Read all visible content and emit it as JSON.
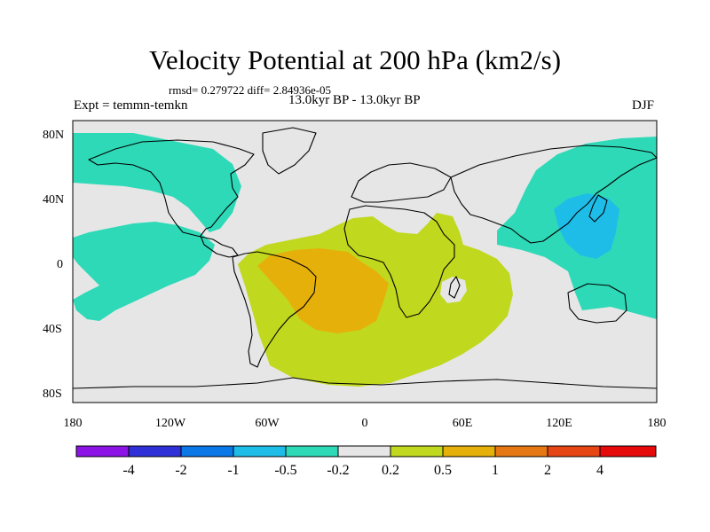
{
  "title": "Velocity Potential at 200 hPa (km2/s)",
  "stats": "rmsd= 0.279722 diff= 2.84936e-05",
  "period": "13.0kyr BP - 13.0kyr BP",
  "experiment": "Expt = temmn-temkn",
  "season": "DJF",
  "lat_ticks": [
    "80N",
    "40N",
    "0",
    "40S",
    "80S"
  ],
  "lon_ticks": [
    "180",
    "120W",
    "60W",
    "0",
    "60E",
    "120E",
    "180"
  ],
  "colorbar": {
    "colors": [
      "#8c14e6",
      "#3030d8",
      "#0a78e6",
      "#1ebde8",
      "#2ed9b8",
      "#e6e6e6",
      "#c0d81e",
      "#e6b00a",
      "#e67814",
      "#e64614",
      "#e60a0a"
    ],
    "labels": [
      "-4",
      "-2",
      "-1",
      "-0.5",
      "-0.2",
      "0.2",
      "0.5",
      "1",
      "2",
      "4"
    ]
  },
  "fills": {
    "background": "#e6e6e6",
    "neg_light": "#2ed9b8",
    "neg_mid": "#1ebde8",
    "pos_light": "#c0d81e",
    "pos_mid": "#e6b00a"
  }
}
